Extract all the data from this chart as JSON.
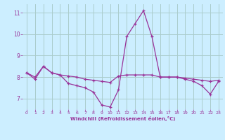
{
  "xlabel": "Windchill (Refroidissement éolien,°C)",
  "background_color": "#cceeff",
  "line_color": "#993399",
  "grid_color": "#aacccc",
  "hours": [
    0,
    1,
    2,
    3,
    4,
    5,
    6,
    7,
    8,
    9,
    10,
    11,
    12,
    13,
    14,
    15,
    16,
    17,
    18,
    19,
    20,
    21,
    22,
    23
  ],
  "line1": [
    8.2,
    7.9,
    8.5,
    8.2,
    8.1,
    7.7,
    7.6,
    7.5,
    7.3,
    6.7,
    6.6,
    7.4,
    9.9,
    10.5,
    11.1,
    9.9,
    8.0,
    8.0,
    8.0,
    7.9,
    7.8,
    7.6,
    7.2,
    7.8
  ],
  "line2": [
    8.2,
    8.0,
    8.5,
    8.2,
    8.1,
    8.05,
    8.0,
    7.9,
    7.85,
    7.8,
    7.75,
    8.05,
    8.1,
    8.1,
    8.1,
    8.1,
    8.0,
    8.0,
    8.0,
    7.95,
    7.9,
    7.85,
    7.8,
    7.85
  ],
  "ylim": [
    6.5,
    11.4
  ],
  "xlim": [
    -0.5,
    23.5
  ],
  "yticks": [
    7,
    8,
    9,
    10,
    11
  ],
  "xticks": [
    0,
    1,
    2,
    3,
    4,
    5,
    6,
    7,
    8,
    9,
    10,
    11,
    12,
    13,
    14,
    15,
    16,
    17,
    18,
    19,
    20,
    21,
    22,
    23
  ]
}
